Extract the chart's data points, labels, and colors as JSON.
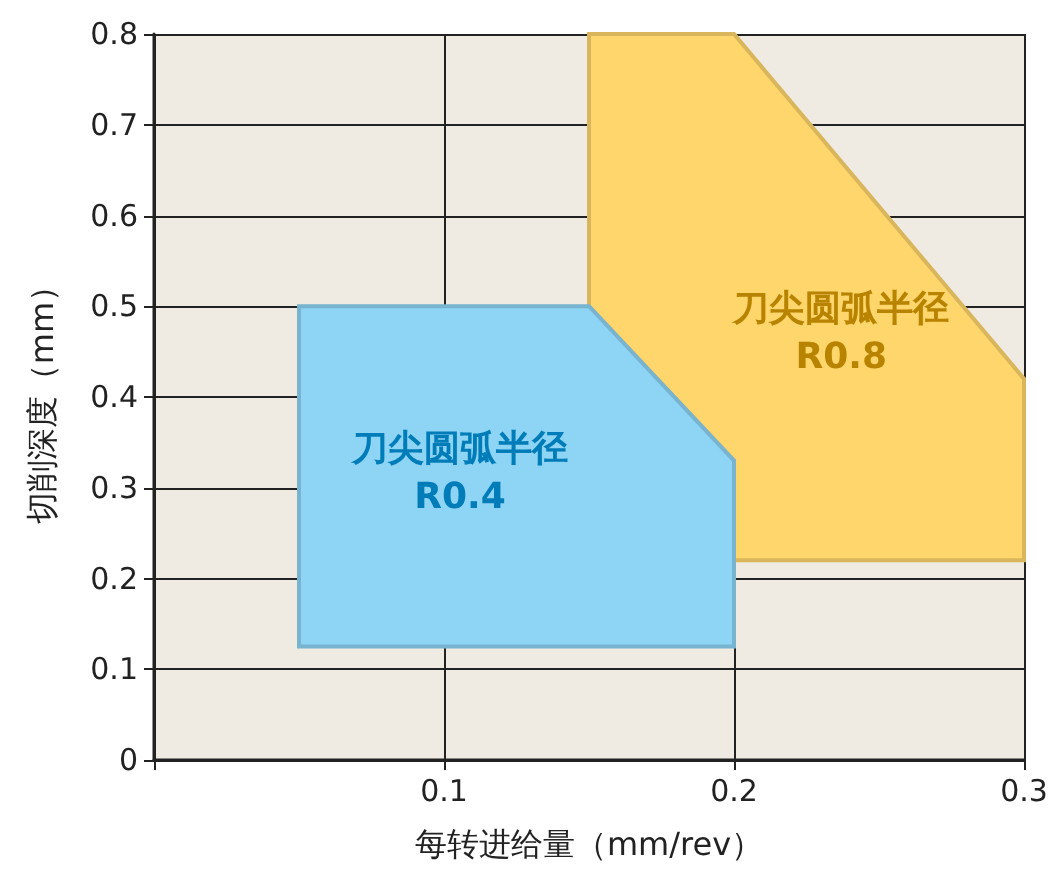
{
  "chart_data": {
    "type": "area",
    "xlabel": "每转进给量（mm/rev）",
    "ylabel": "切削深度（mm）",
    "xlim": [
      0,
      0.3
    ],
    "ylim": [
      0,
      0.8
    ],
    "xticks": [
      {
        "value": 0,
        "label": null
      },
      0.1,
      0.2,
      0.3
    ],
    "yticks": [
      0,
      0.1,
      0.2,
      0.3,
      0.4,
      0.5,
      0.6,
      0.7,
      0.8
    ],
    "grid": true,
    "series": [
      {
        "name": "刀尖圆弧半径\nR0.8",
        "color": "#ffd66b",
        "x": [
          0.15,
          0.15,
          0.2,
          0.3,
          0.3,
          0.2,
          0.2
        ],
        "values": [
          0.5,
          0.8,
          0.8,
          0.42,
          0.22,
          0.22,
          0.33
        ]
      },
      {
        "name": "刀尖圆弧半径\nR0.4",
        "color": "#8dd4f5",
        "x": [
          0.05,
          0.05,
          0.15,
          0.2,
          0.2
        ],
        "values": [
          0.125,
          0.5,
          0.5,
          0.33,
          0.125
        ]
      }
    ]
  }
}
